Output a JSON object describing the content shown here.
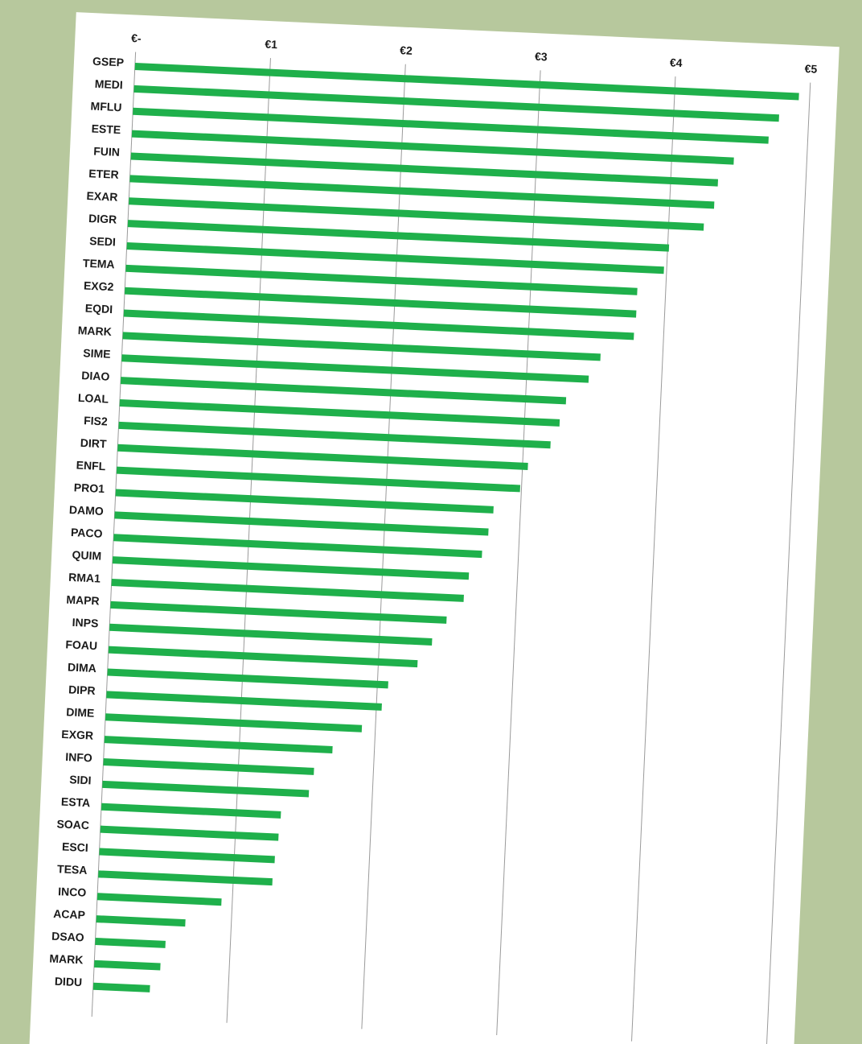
{
  "chart_data": {
    "type": "bar",
    "orientation": "horizontal",
    "categories": [
      "GSEP",
      "MEDI",
      "MFLU",
      "ESTE",
      "FUIN",
      "ETER",
      "EXAR",
      "DIGR",
      "SEDI",
      "TEMA",
      "EXG2",
      "EQDI",
      "MARK",
      "SIME",
      "DIAO",
      "LOAL",
      "FIS2",
      "DIRT",
      "ENFL",
      "PRO1",
      "DAMO",
      "PACO",
      "QUIM",
      "RMA1",
      "MAPR",
      "INPS",
      "FOAU",
      "DIMA",
      "DIPR",
      "DIME",
      "EXGR",
      "INFO",
      "SIDI",
      "ESTA",
      "SOAC",
      "ESCI",
      "TESA",
      "INCO",
      "ACAP",
      "DSAO",
      "MARK",
      "DIDU"
    ],
    "values": [
      4.92,
      4.78,
      4.71,
      4.46,
      4.35,
      4.33,
      4.26,
      4.01,
      3.98,
      3.79,
      3.79,
      3.78,
      3.54,
      3.46,
      3.3,
      3.26,
      3.2,
      3.04,
      2.99,
      2.8,
      2.77,
      2.73,
      2.64,
      2.61,
      2.49,
      2.39,
      2.29,
      2.08,
      2.04,
      1.9,
      1.69,
      1.56,
      1.53,
      1.33,
      1.32,
      1.3,
      1.29,
      0.92,
      0.66,
      0.52,
      0.49,
      0.42
    ],
    "color": "#1fb04b",
    "xlim": [
      0,
      5
    ],
    "xticks": [
      {
        "value": 0,
        "label": "€-"
      },
      {
        "value": 1,
        "label": "€1"
      },
      {
        "value": 2,
        "label": "€2"
      },
      {
        "value": 3,
        "label": "€3"
      },
      {
        "value": 4,
        "label": "€4"
      },
      {
        "value": 5,
        "label": "€5"
      }
    ],
    "grid": true
  }
}
